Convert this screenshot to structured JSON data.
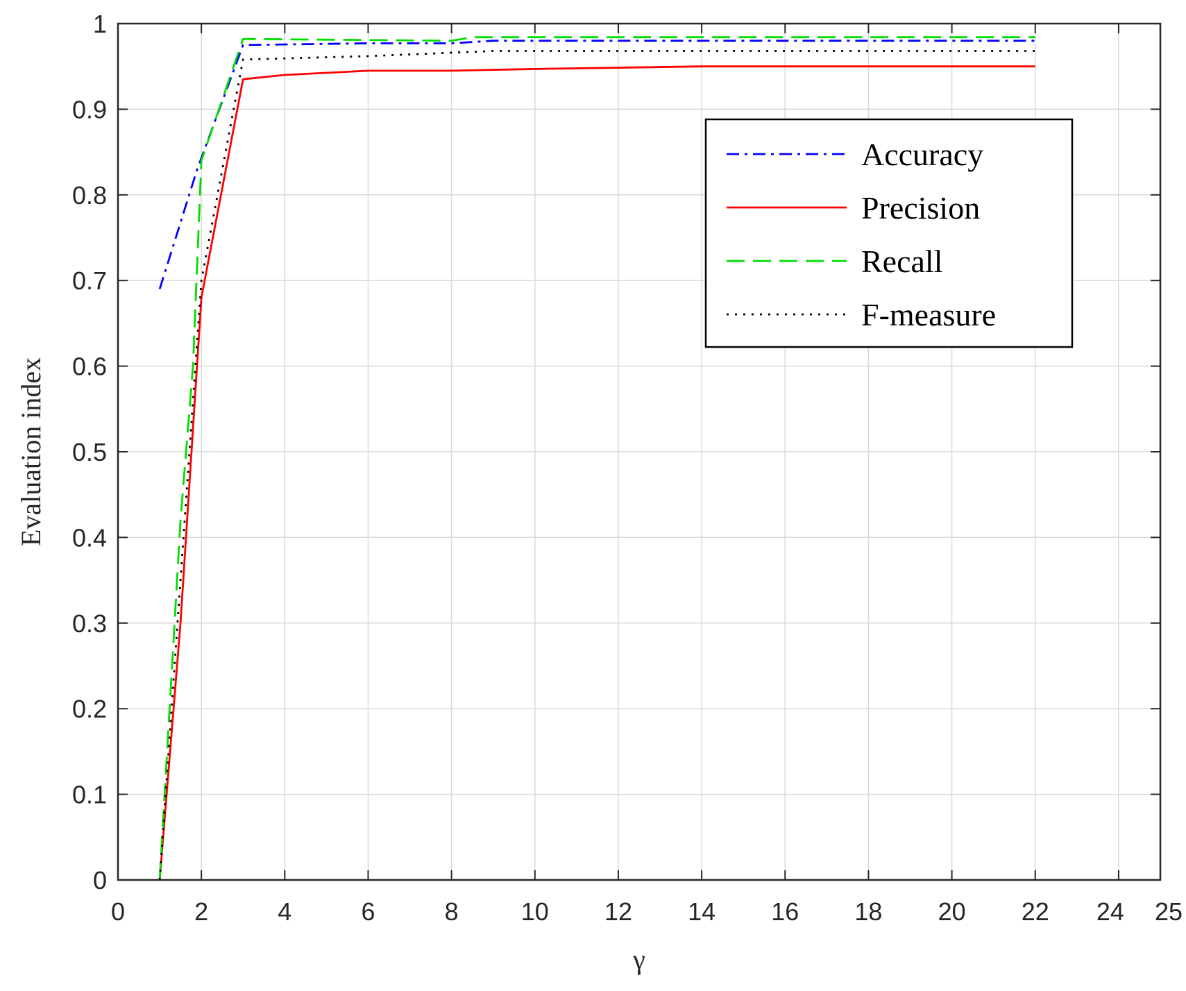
{
  "chart_data": {
    "type": "line",
    "title": "",
    "xlabel": "γ",
    "ylabel": "Evaluation index",
    "xlim": [
      0,
      25
    ],
    "ylim": [
      0,
      1
    ],
    "xticks": [
      0,
      2,
      4,
      6,
      8,
      10,
      12,
      14,
      16,
      18,
      20,
      22,
      24,
      25
    ],
    "yticks": [
      0,
      0.1,
      0.2,
      0.3,
      0.4,
      0.5,
      0.6,
      0.7,
      0.8,
      0.9,
      1
    ],
    "ytick_labels": [
      "0",
      "0.1",
      "0.2",
      "0.3",
      "0.4",
      "0.5",
      "0.6",
      "0.7",
      "0.8",
      "0.9",
      "1"
    ],
    "grid": true,
    "legend_position": "top-right",
    "series": [
      {
        "name": "Accuracy",
        "color": "#0000ff",
        "dash": "dashdot",
        "points": [
          [
            1,
            0.69
          ],
          [
            1.9,
            0.83
          ],
          [
            3,
            0.975
          ],
          [
            6,
            0.977
          ],
          [
            8,
            0.977
          ],
          [
            9,
            0.98
          ],
          [
            22,
            0.98
          ]
        ]
      },
      {
        "name": "Precision",
        "color": "#ff0000",
        "dash": "solid",
        "points": [
          [
            1,
            0.0
          ],
          [
            1.5,
            0.3
          ],
          [
            2,
            0.68
          ],
          [
            3,
            0.935
          ],
          [
            4,
            0.94
          ],
          [
            6,
            0.945
          ],
          [
            8,
            0.945
          ],
          [
            10,
            0.947
          ],
          [
            14,
            0.95
          ],
          [
            22,
            0.95
          ]
        ]
      },
      {
        "name": "Recall",
        "color": "#00dd00",
        "dash": "dashed",
        "points": [
          [
            1,
            0.0
          ],
          [
            1.5,
            0.42
          ],
          [
            1.8,
            0.6
          ],
          [
            2,
            0.84
          ],
          [
            3,
            0.982
          ],
          [
            8,
            0.98
          ],
          [
            8.5,
            0.984
          ],
          [
            22,
            0.984
          ]
        ]
      },
      {
        "name": "F-measure",
        "color": "#000000",
        "dash": "dotted",
        "points": [
          [
            1,
            0.0
          ],
          [
            1.5,
            0.35
          ],
          [
            2,
            0.7
          ],
          [
            3,
            0.958
          ],
          [
            6,
            0.962
          ],
          [
            9,
            0.968
          ],
          [
            22,
            0.968
          ]
        ]
      }
    ]
  }
}
